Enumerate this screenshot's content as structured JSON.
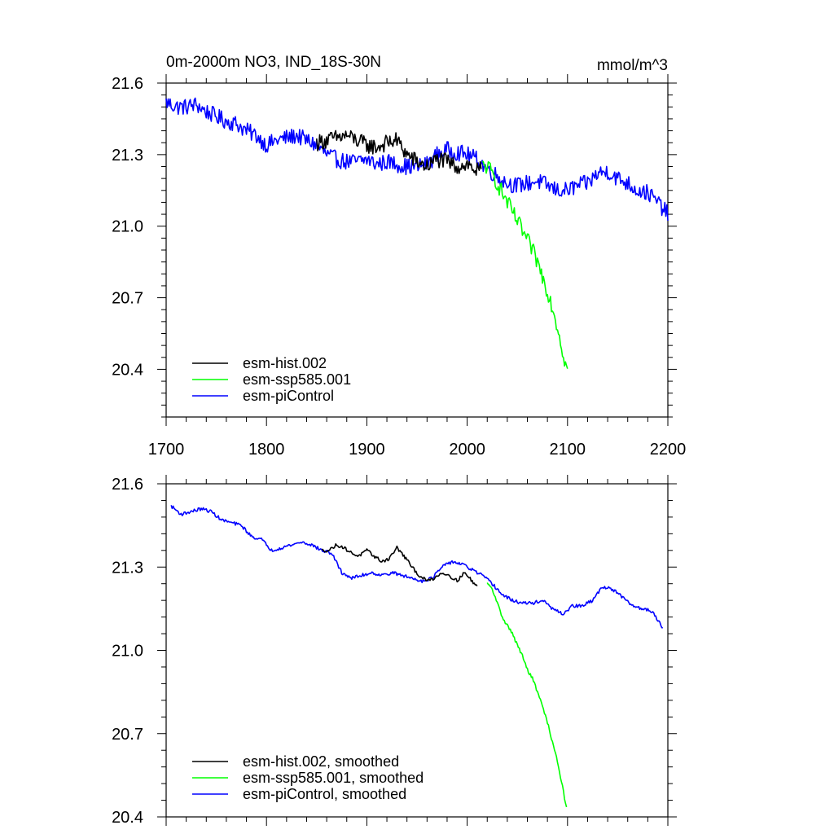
{
  "chart_data": [
    {
      "type": "line",
      "panel": "top",
      "title": "0m-2000m NO3, IND_18S-30N",
      "units": "mmol/m^3",
      "xlim": [
        1700,
        2200
      ],
      "ylim": [
        20.2,
        21.6
      ],
      "xticks": [
        1700,
        1800,
        1900,
        2000,
        2100,
        2200
      ],
      "xtick_labels": [
        "1700",
        "1800",
        "1900",
        "2000",
        "2100",
        "2200"
      ],
      "yticks": [
        20.4,
        20.7,
        21.0,
        21.3,
        21.6
      ],
      "ytick_labels": [
        "20.4",
        "20.7",
        "21.0",
        "21.3",
        "21.6"
      ],
      "legend_position": "bottom-left",
      "series": [
        {
          "name": "esm-piControl",
          "color": "#0000ff",
          "style": "noisy",
          "x": [
            1700,
            1710,
            1720,
            1730,
            1740,
            1750,
            1760,
            1770,
            1780,
            1790,
            1800,
            1810,
            1820,
            1830,
            1840,
            1850,
            1860,
            1870,
            1880,
            1890,
            1900,
            1910,
            1920,
            1930,
            1940,
            1950,
            1960,
            1970,
            1980,
            1990,
            2000,
            2010,
            2020,
            2030,
            2040,
            2050,
            2060,
            2070,
            2080,
            2090,
            2100,
            2110,
            2120,
            2130,
            2140,
            2150,
            2160,
            2170,
            2180,
            2190,
            2200
          ],
          "y": [
            21.52,
            21.5,
            21.5,
            21.51,
            21.48,
            21.46,
            21.44,
            21.43,
            21.4,
            21.38,
            21.34,
            21.36,
            21.37,
            21.38,
            21.36,
            21.34,
            21.3,
            21.28,
            21.27,
            21.27,
            21.28,
            21.26,
            21.27,
            21.26,
            21.25,
            21.25,
            21.26,
            21.3,
            21.32,
            21.31,
            21.3,
            21.28,
            21.24,
            21.21,
            21.18,
            21.17,
            21.18,
            21.19,
            21.17,
            21.15,
            21.15,
            21.17,
            21.18,
            21.22,
            21.23,
            21.2,
            21.18,
            21.15,
            21.14,
            21.1,
            21.05
          ]
        },
        {
          "name": "esm-hist.002",
          "color": "#000000",
          "style": "noisy",
          "x": [
            1850,
            1860,
            1870,
            1880,
            1890,
            1900,
            1910,
            1920,
            1930,
            1940,
            1950,
            1960,
            1970,
            1980,
            1990,
            2000,
            2010,
            2014
          ],
          "y": [
            21.35,
            21.36,
            21.37,
            21.38,
            21.36,
            21.34,
            21.33,
            21.35,
            21.36,
            21.3,
            21.27,
            21.25,
            21.28,
            21.27,
            21.25,
            21.26,
            21.23,
            21.24
          ]
        },
        {
          "name": "esm-ssp585.001",
          "color": "#00ff00",
          "style": "noisy",
          "x": [
            2015,
            2020,
            2025,
            2030,
            2035,
            2040,
            2045,
            2050,
            2055,
            2060,
            2065,
            2070,
            2075,
            2080,
            2085,
            2090,
            2095,
            2100
          ],
          "y": [
            21.25,
            21.25,
            21.22,
            21.18,
            21.14,
            21.1,
            21.06,
            21.02,
            20.98,
            20.94,
            20.9,
            20.85,
            20.79,
            20.73,
            20.66,
            20.58,
            20.48,
            20.39
          ]
        }
      ],
      "legend": [
        "esm-hist.002",
        "esm-ssp585.001",
        "esm-piControl"
      ]
    },
    {
      "type": "line",
      "panel": "bottom",
      "title": "",
      "xlim": [
        1700,
        2200
      ],
      "ylim": [
        20.4,
        21.6
      ],
      "xticks": [
        1700,
        1800,
        1900,
        2000,
        2100,
        2200
      ],
      "yticks": [
        20.4,
        20.7,
        21.0,
        21.3,
        21.6
      ],
      "ytick_labels": [
        "20.4",
        "20.7",
        "21.0",
        "21.3",
        "21.6"
      ],
      "legend_position": "bottom-left",
      "series": [
        {
          "name": "esm-piControl, smoothed",
          "color": "#0000ff",
          "style": "smooth",
          "x": [
            1705,
            1715,
            1725,
            1735,
            1745,
            1755,
            1765,
            1775,
            1785,
            1795,
            1805,
            1815,
            1825,
            1835,
            1845,
            1855,
            1865,
            1875,
            1885,
            1895,
            1905,
            1915,
            1925,
            1935,
            1945,
            1955,
            1965,
            1975,
            1985,
            1995,
            2005,
            2015,
            2025,
            2035,
            2045,
            2055,
            2065,
            2075,
            2085,
            2095,
            2105,
            2115,
            2125,
            2135,
            2145,
            2155,
            2165,
            2175,
            2185,
            2195
          ],
          "y": [
            21.52,
            21.49,
            21.5,
            21.51,
            21.5,
            21.47,
            21.46,
            21.45,
            21.41,
            21.4,
            21.36,
            21.37,
            21.38,
            21.39,
            21.38,
            21.36,
            21.35,
            21.28,
            21.26,
            21.27,
            21.28,
            21.27,
            21.28,
            21.27,
            21.26,
            21.25,
            21.26,
            21.3,
            21.32,
            21.31,
            21.29,
            21.27,
            21.24,
            21.2,
            21.18,
            21.17,
            21.17,
            21.18,
            21.15,
            21.13,
            21.16,
            21.16,
            21.18,
            21.23,
            21.22,
            21.19,
            21.16,
            21.15,
            21.14,
            21.08
          ]
        },
        {
          "name": "esm-hist.002, smoothed",
          "color": "#000000",
          "style": "smooth",
          "x": [
            1855,
            1862,
            1870,
            1877,
            1885,
            1892,
            1900,
            1907,
            1915,
            1922,
            1930,
            1937,
            1945,
            1952,
            1960,
            1967,
            1975,
            1982,
            1990,
            1997,
            2005,
            2010
          ],
          "y": [
            21.36,
            21.36,
            21.38,
            21.37,
            21.35,
            21.34,
            21.36,
            21.34,
            21.32,
            21.33,
            21.37,
            21.34,
            21.3,
            21.27,
            21.25,
            21.26,
            21.28,
            21.27,
            21.25,
            21.28,
            21.25,
            21.23
          ]
        },
        {
          "name": "esm-ssp585.001, smoothed",
          "color": "#00ff00",
          "style": "smooth",
          "x": [
            2020,
            2025,
            2030,
            2035,
            2040,
            2045,
            2050,
            2055,
            2060,
            2065,
            2070,
            2075,
            2080,
            2085,
            2090,
            2095,
            2099
          ],
          "y": [
            21.24,
            21.22,
            21.17,
            21.12,
            21.09,
            21.06,
            21.02,
            20.98,
            20.93,
            20.9,
            20.85,
            20.8,
            20.74,
            20.67,
            20.6,
            20.51,
            20.43
          ]
        }
      ],
      "legend": [
        "esm-hist.002, smoothed",
        "esm-ssp585.001, smoothed",
        "esm-piControl, smoothed"
      ]
    }
  ]
}
